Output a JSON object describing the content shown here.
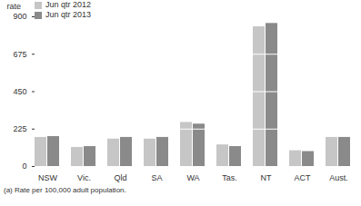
{
  "chart_data": {
    "type": "bar",
    "y_label": "rate",
    "footnote": "(a) Rate per 100,000 adult population.",
    "categories": [
      "NSW",
      "Vic.",
      "Qld",
      "SA",
      "WA",
      "Tas.",
      "NT",
      "ACT",
      "Aust."
    ],
    "series": [
      {
        "name": "Jun qtr 2012",
        "color": "#c6c6c6",
        "values": [
          175,
          115,
          165,
          165,
          265,
          130,
          840,
          95,
          175
        ]
      },
      {
        "name": "Jun qtr 2013",
        "color": "#8a8a8a",
        "values": [
          180,
          120,
          175,
          175,
          255,
          120,
          860,
          90,
          175
        ]
      }
    ],
    "ylim": [
      0,
      900
    ],
    "yticks": [
      0,
      225,
      450,
      675,
      900
    ],
    "grid": true,
    "legend": "top-left"
  }
}
